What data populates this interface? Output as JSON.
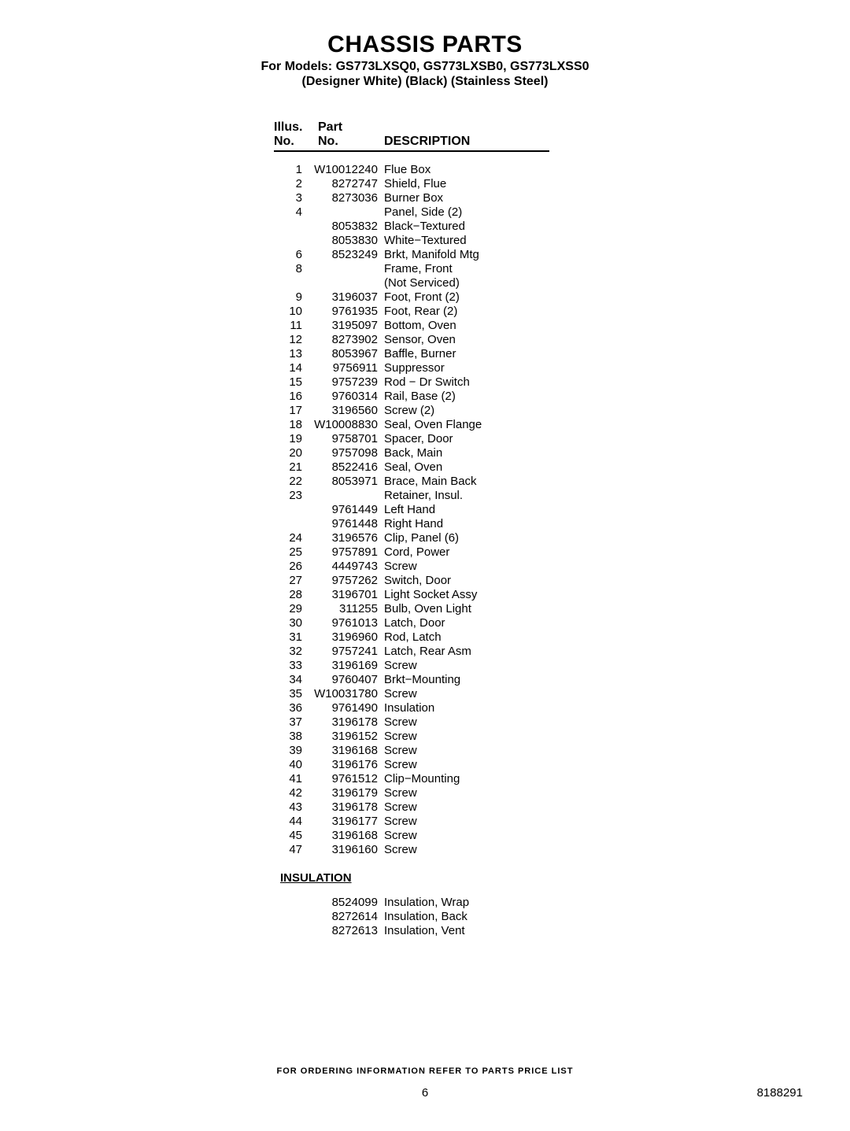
{
  "title": "CHASSIS PARTS",
  "models_line": "For Models: GS773LXSQ0, GS773LXSB0, GS773LXSS0",
  "colors_line": "(Designer White)    (Black)    (Stainless Steel)",
  "headers": {
    "illus_line1": "Illus.",
    "illus_line2": "No.",
    "part_line1": "Part",
    "part_line2": "No.",
    "desc": "DESCRIPTION"
  },
  "parts": [
    {
      "illus": "1",
      "part": "W10012240",
      "desc": "Flue Box"
    },
    {
      "illus": "2",
      "part": "8272747",
      "desc": "Shield, Flue"
    },
    {
      "illus": "3",
      "part": "8273036",
      "desc": "Burner Box"
    },
    {
      "illus": "4",
      "part": "",
      "desc": "Panel, Side (2)"
    },
    {
      "illus": "",
      "part": "8053832",
      "desc": "Black−Textured"
    },
    {
      "illus": "",
      "part": "8053830",
      "desc": "White−Textured"
    },
    {
      "illus": "6",
      "part": "8523249",
      "desc": "Brkt, Manifold Mtg"
    },
    {
      "illus": "8",
      "part": "",
      "desc": "Frame, Front"
    },
    {
      "illus": "",
      "part": "",
      "desc": "(Not Serviced)"
    },
    {
      "illus": "9",
      "part": "3196037",
      "desc": "Foot, Front (2)"
    },
    {
      "illus": "10",
      "part": "9761935",
      "desc": "Foot, Rear (2)"
    },
    {
      "illus": "11",
      "part": "3195097",
      "desc": "Bottom, Oven"
    },
    {
      "illus": "12",
      "part": "8273902",
      "desc": "Sensor, Oven"
    },
    {
      "illus": "13",
      "part": "8053967",
      "desc": "Baffle, Burner"
    },
    {
      "illus": "14",
      "part": "9756911",
      "desc": "Suppressor"
    },
    {
      "illus": "15",
      "part": "9757239",
      "desc": "Rod − Dr Switch"
    },
    {
      "illus": "16",
      "part": "9760314",
      "desc": "Rail, Base (2)"
    },
    {
      "illus": "17",
      "part": "3196560",
      "desc": "Screw (2)"
    },
    {
      "illus": "18",
      "part": "W10008830",
      "desc": "Seal, Oven Flange"
    },
    {
      "illus": "19",
      "part": "9758701",
      "desc": "Spacer, Door"
    },
    {
      "illus": "20",
      "part": "9757098",
      "desc": "Back, Main"
    },
    {
      "illus": "21",
      "part": "8522416",
      "desc": "Seal, Oven"
    },
    {
      "illus": "22",
      "part": "8053971",
      "desc": "Brace, Main Back"
    },
    {
      "illus": "23",
      "part": "",
      "desc": "Retainer, Insul."
    },
    {
      "illus": "",
      "part": "9761449",
      "desc": "Left Hand"
    },
    {
      "illus": "",
      "part": "9761448",
      "desc": "Right Hand"
    },
    {
      "illus": "24",
      "part": "3196576",
      "desc": "Clip, Panel (6)"
    },
    {
      "illus": "25",
      "part": "9757891",
      "desc": "Cord, Power"
    },
    {
      "illus": "26",
      "part": "4449743",
      "desc": "Screw"
    },
    {
      "illus": "27",
      "part": "9757262",
      "desc": "Switch, Door"
    },
    {
      "illus": "28",
      "part": "3196701",
      "desc": "Light Socket Assy"
    },
    {
      "illus": "29",
      "part": "311255",
      "desc": "Bulb, Oven Light"
    },
    {
      "illus": "30",
      "part": "9761013",
      "desc": "Latch, Door"
    },
    {
      "illus": "31",
      "part": "3196960",
      "desc": "Rod, Latch"
    },
    {
      "illus": "32",
      "part": "9757241",
      "desc": "Latch, Rear Asm"
    },
    {
      "illus": "33",
      "part": "3196169",
      "desc": "Screw"
    },
    {
      "illus": "34",
      "part": "9760407",
      "desc": "Brkt−Mounting"
    },
    {
      "illus": "35",
      "part": "W10031780",
      "desc": "Screw"
    },
    {
      "illus": "36",
      "part": "9761490",
      "desc": "Insulation"
    },
    {
      "illus": "37",
      "part": "3196178",
      "desc": "Screw"
    },
    {
      "illus": "38",
      "part": "3196152",
      "desc": "Screw"
    },
    {
      "illus": "39",
      "part": "3196168",
      "desc": "Screw"
    },
    {
      "illus": "40",
      "part": "3196176",
      "desc": "Screw"
    },
    {
      "illus": "41",
      "part": "9761512",
      "desc": "Clip−Mounting"
    },
    {
      "illus": "42",
      "part": "3196179",
      "desc": "Screw"
    },
    {
      "illus": "43",
      "part": "3196178",
      "desc": "Screw"
    },
    {
      "illus": "44",
      "part": "3196177",
      "desc": "Screw"
    },
    {
      "illus": "45",
      "part": "3196168",
      "desc": "Screw"
    },
    {
      "illus": "47",
      "part": "3196160",
      "desc": "Screw"
    }
  ],
  "insulation_heading": "INSULATION",
  "insulation": [
    {
      "illus": "",
      "part": "8524099",
      "desc": "Insulation, Wrap"
    },
    {
      "illus": "",
      "part": "8272614",
      "desc": "Insulation, Back"
    },
    {
      "illus": "",
      "part": "8272613",
      "desc": "Insulation, Vent"
    }
  ],
  "footer_note": "FOR ORDERING INFORMATION REFER TO PARTS PRICE LIST",
  "page_number": "6",
  "doc_number": "8188291"
}
